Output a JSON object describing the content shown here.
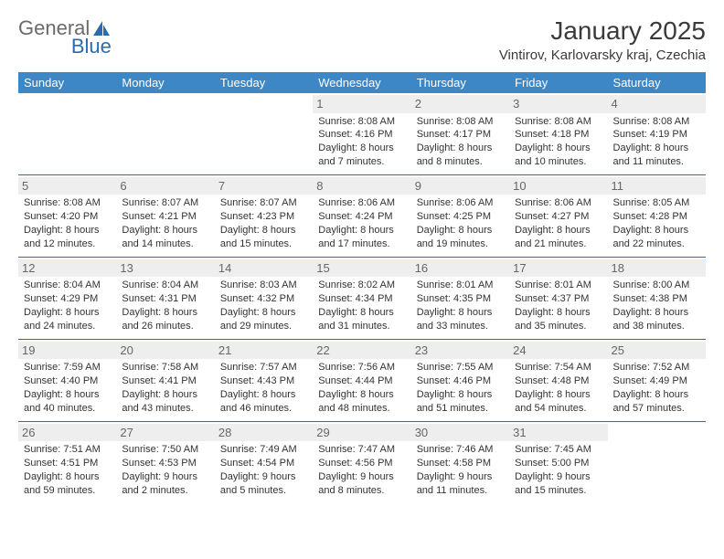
{
  "brand": {
    "part1": "General",
    "part2": "Blue"
  },
  "title": "January 2025",
  "location": "Vintirov, Karlovarsky kraj, Czechia",
  "colors": {
    "header_bg": "#3d87c7",
    "header_fg": "#ffffff",
    "row_border": "#2a6bb0",
    "daynum_bg": "#eeeeee",
    "daynum_fg": "#666666",
    "brand_blue": "#2a6bb0",
    "brand_gray": "#6a6a6a"
  },
  "weekdays": [
    "Sunday",
    "Monday",
    "Tuesday",
    "Wednesday",
    "Thursday",
    "Friday",
    "Saturday"
  ],
  "weeks": [
    [
      {
        "n": "",
        "empty": true
      },
      {
        "n": "",
        "empty": true
      },
      {
        "n": "",
        "empty": true
      },
      {
        "n": "1",
        "l1": "Sunrise: 8:08 AM",
        "l2": "Sunset: 4:16 PM",
        "l3": "Daylight: 8 hours",
        "l4": "and 7 minutes."
      },
      {
        "n": "2",
        "l1": "Sunrise: 8:08 AM",
        "l2": "Sunset: 4:17 PM",
        "l3": "Daylight: 8 hours",
        "l4": "and 8 minutes."
      },
      {
        "n": "3",
        "l1": "Sunrise: 8:08 AM",
        "l2": "Sunset: 4:18 PM",
        "l3": "Daylight: 8 hours",
        "l4": "and 10 minutes."
      },
      {
        "n": "4",
        "l1": "Sunrise: 8:08 AM",
        "l2": "Sunset: 4:19 PM",
        "l3": "Daylight: 8 hours",
        "l4": "and 11 minutes."
      }
    ],
    [
      {
        "n": "5",
        "l1": "Sunrise: 8:08 AM",
        "l2": "Sunset: 4:20 PM",
        "l3": "Daylight: 8 hours",
        "l4": "and 12 minutes."
      },
      {
        "n": "6",
        "l1": "Sunrise: 8:07 AM",
        "l2": "Sunset: 4:21 PM",
        "l3": "Daylight: 8 hours",
        "l4": "and 14 minutes."
      },
      {
        "n": "7",
        "l1": "Sunrise: 8:07 AM",
        "l2": "Sunset: 4:23 PM",
        "l3": "Daylight: 8 hours",
        "l4": "and 15 minutes."
      },
      {
        "n": "8",
        "l1": "Sunrise: 8:06 AM",
        "l2": "Sunset: 4:24 PM",
        "l3": "Daylight: 8 hours",
        "l4": "and 17 minutes."
      },
      {
        "n": "9",
        "l1": "Sunrise: 8:06 AM",
        "l2": "Sunset: 4:25 PM",
        "l3": "Daylight: 8 hours",
        "l4": "and 19 minutes."
      },
      {
        "n": "10",
        "l1": "Sunrise: 8:06 AM",
        "l2": "Sunset: 4:27 PM",
        "l3": "Daylight: 8 hours",
        "l4": "and 21 minutes."
      },
      {
        "n": "11",
        "l1": "Sunrise: 8:05 AM",
        "l2": "Sunset: 4:28 PM",
        "l3": "Daylight: 8 hours",
        "l4": "and 22 minutes."
      }
    ],
    [
      {
        "n": "12",
        "l1": "Sunrise: 8:04 AM",
        "l2": "Sunset: 4:29 PM",
        "l3": "Daylight: 8 hours",
        "l4": "and 24 minutes."
      },
      {
        "n": "13",
        "l1": "Sunrise: 8:04 AM",
        "l2": "Sunset: 4:31 PM",
        "l3": "Daylight: 8 hours",
        "l4": "and 26 minutes."
      },
      {
        "n": "14",
        "l1": "Sunrise: 8:03 AM",
        "l2": "Sunset: 4:32 PM",
        "l3": "Daylight: 8 hours",
        "l4": "and 29 minutes."
      },
      {
        "n": "15",
        "l1": "Sunrise: 8:02 AM",
        "l2": "Sunset: 4:34 PM",
        "l3": "Daylight: 8 hours",
        "l4": "and 31 minutes."
      },
      {
        "n": "16",
        "l1": "Sunrise: 8:01 AM",
        "l2": "Sunset: 4:35 PM",
        "l3": "Daylight: 8 hours",
        "l4": "and 33 minutes."
      },
      {
        "n": "17",
        "l1": "Sunrise: 8:01 AM",
        "l2": "Sunset: 4:37 PM",
        "l3": "Daylight: 8 hours",
        "l4": "and 35 minutes."
      },
      {
        "n": "18",
        "l1": "Sunrise: 8:00 AM",
        "l2": "Sunset: 4:38 PM",
        "l3": "Daylight: 8 hours",
        "l4": "and 38 minutes."
      }
    ],
    [
      {
        "n": "19",
        "l1": "Sunrise: 7:59 AM",
        "l2": "Sunset: 4:40 PM",
        "l3": "Daylight: 8 hours",
        "l4": "and 40 minutes."
      },
      {
        "n": "20",
        "l1": "Sunrise: 7:58 AM",
        "l2": "Sunset: 4:41 PM",
        "l3": "Daylight: 8 hours",
        "l4": "and 43 minutes."
      },
      {
        "n": "21",
        "l1": "Sunrise: 7:57 AM",
        "l2": "Sunset: 4:43 PM",
        "l3": "Daylight: 8 hours",
        "l4": "and 46 minutes."
      },
      {
        "n": "22",
        "l1": "Sunrise: 7:56 AM",
        "l2": "Sunset: 4:44 PM",
        "l3": "Daylight: 8 hours",
        "l4": "and 48 minutes."
      },
      {
        "n": "23",
        "l1": "Sunrise: 7:55 AM",
        "l2": "Sunset: 4:46 PM",
        "l3": "Daylight: 8 hours",
        "l4": "and 51 minutes."
      },
      {
        "n": "24",
        "l1": "Sunrise: 7:54 AM",
        "l2": "Sunset: 4:48 PM",
        "l3": "Daylight: 8 hours",
        "l4": "and 54 minutes."
      },
      {
        "n": "25",
        "l1": "Sunrise: 7:52 AM",
        "l2": "Sunset: 4:49 PM",
        "l3": "Daylight: 8 hours",
        "l4": "and 57 minutes."
      }
    ],
    [
      {
        "n": "26",
        "l1": "Sunrise: 7:51 AM",
        "l2": "Sunset: 4:51 PM",
        "l3": "Daylight: 8 hours",
        "l4": "and 59 minutes."
      },
      {
        "n": "27",
        "l1": "Sunrise: 7:50 AM",
        "l2": "Sunset: 4:53 PM",
        "l3": "Daylight: 9 hours",
        "l4": "and 2 minutes."
      },
      {
        "n": "28",
        "l1": "Sunrise: 7:49 AM",
        "l2": "Sunset: 4:54 PM",
        "l3": "Daylight: 9 hours",
        "l4": "and 5 minutes."
      },
      {
        "n": "29",
        "l1": "Sunrise: 7:47 AM",
        "l2": "Sunset: 4:56 PM",
        "l3": "Daylight: 9 hours",
        "l4": "and 8 minutes."
      },
      {
        "n": "30",
        "l1": "Sunrise: 7:46 AM",
        "l2": "Sunset: 4:58 PM",
        "l3": "Daylight: 9 hours",
        "l4": "and 11 minutes."
      },
      {
        "n": "31",
        "l1": "Sunrise: 7:45 AM",
        "l2": "Sunset: 5:00 PM",
        "l3": "Daylight: 9 hours",
        "l4": "and 15 minutes."
      },
      {
        "n": "",
        "empty": true
      }
    ]
  ]
}
